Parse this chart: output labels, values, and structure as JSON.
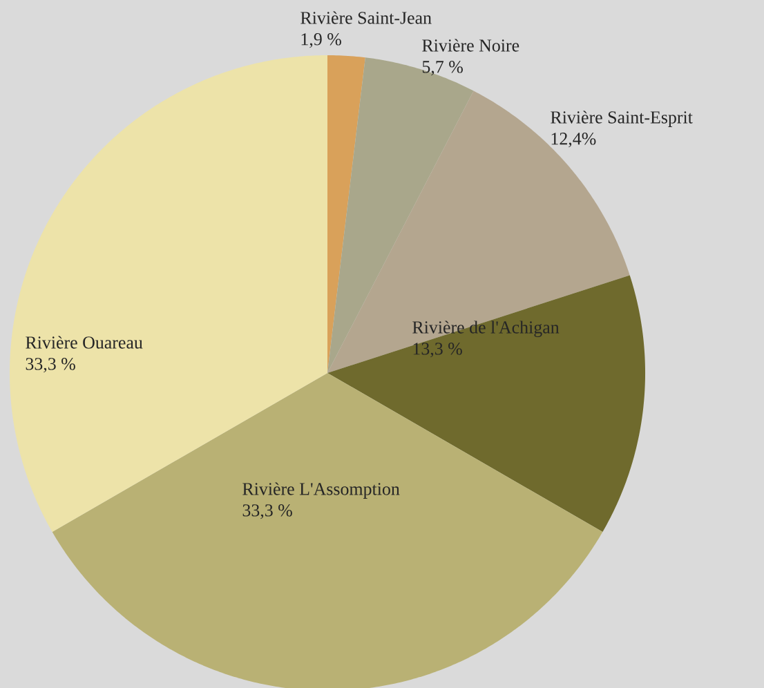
{
  "chart_data": {
    "type": "pie",
    "categories": [
      "Rivière Saint-Jean",
      "Rivière Noire",
      "Rivière Saint-Esprit",
      "Rivière de l'Achigan",
      "Rivière L'Assomption",
      "Rivière Ouareau"
    ],
    "values": [
      1.9,
      5.7,
      12.4,
      13.3,
      33.3,
      33.3
    ],
    "value_labels": [
      "1,9 %",
      "5,7 %",
      "12,4%",
      "13,3 %",
      "33,3 %",
      "33,3 %"
    ],
    "colors": [
      "#d9a15a",
      "#a9a78b",
      "#b4a68f",
      "#6f6a2d",
      "#b9b174",
      "#ede3a9"
    ]
  }
}
